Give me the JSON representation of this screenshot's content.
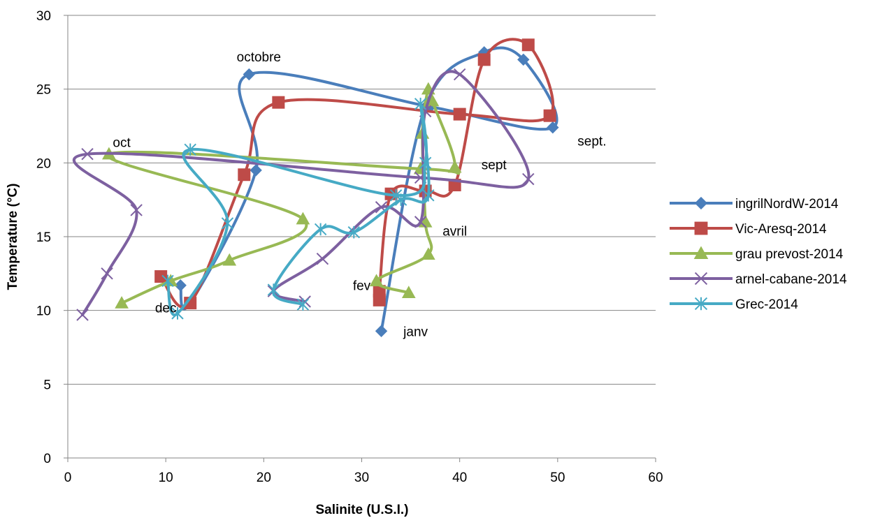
{
  "chart_data": {
    "type": "scatter",
    "title": "",
    "xlabel": "Salinite (U.S.I.)",
    "ylabel": "Temperature (°C)",
    "xlim": [
      0,
      60
    ],
    "ylim": [
      0,
      30
    ],
    "x_ticks": [
      "0",
      "10",
      "20",
      "30",
      "40",
      "50",
      "60"
    ],
    "y_ticks": [
      "0",
      "5",
      "10",
      "15",
      "20",
      "25",
      "30"
    ],
    "grid": "horizontal",
    "legend_position": "right",
    "series": [
      {
        "name": "ingrilNordW-2014",
        "color": "#4a7ebb",
        "marker": "diamond",
        "points": [
          [
            32,
            8.6
          ],
          [
            36.5,
            23.8
          ],
          [
            42.5,
            27.5
          ],
          [
            46.5,
            27
          ],
          [
            49.5,
            22.4
          ],
          [
            37,
            23.8
          ],
          [
            18.5,
            26
          ],
          [
            19.2,
            19.5
          ],
          [
            12.5,
            10.5
          ],
          [
            11.5,
            11.7
          ]
        ]
      },
      {
        "name": "Vic-Aresq-2014",
        "color": "#be4b48",
        "marker": "square",
        "points": [
          [
            31.8,
            10.7
          ],
          [
            31.8,
            11.3
          ],
          [
            33,
            17.9
          ],
          [
            36.5,
            18.1
          ],
          [
            39.5,
            18.5
          ],
          [
            42.5,
            27
          ],
          [
            47,
            28
          ],
          [
            49.2,
            23.2
          ],
          [
            40,
            23.3
          ],
          [
            21.5,
            24.1
          ],
          [
            18,
            19.2
          ],
          [
            12.5,
            10.5
          ],
          [
            9.5,
            12.3
          ]
        ]
      },
      {
        "name": "grau prevost-2014",
        "color": "#98b954",
        "marker": "triangle",
        "points": [
          [
            34.8,
            11.2
          ],
          [
            31.5,
            12
          ],
          [
            36.8,
            13.8
          ],
          [
            36.5,
            16
          ],
          [
            36.2,
            22
          ],
          [
            36.8,
            25
          ],
          [
            37.2,
            24.2
          ],
          [
            39.5,
            19.7
          ],
          [
            36,
            19.6
          ],
          [
            4.2,
            20.6
          ],
          [
            24,
            16.2
          ],
          [
            16.5,
            13.4
          ],
          [
            10.5,
            12
          ],
          [
            5.5,
            10.5
          ]
        ]
      },
      {
        "name": "arnel-cabane-2014",
        "color": "#7d60a0",
        "marker": "x",
        "points": [
          [
            1.5,
            9.7
          ],
          [
            4,
            12.5
          ],
          [
            7,
            16.8
          ],
          [
            2,
            20.6
          ],
          [
            36,
            19
          ],
          [
            47,
            18.9
          ],
          [
            40,
            26
          ],
          [
            36.5,
            23.5
          ],
          [
            36,
            16
          ],
          [
            32,
            17
          ],
          [
            26,
            13.5
          ],
          [
            21,
            11.3
          ],
          [
            24.2,
            10.6
          ]
        ]
      },
      {
        "name": "Grec-2014",
        "color": "#46aac5",
        "marker": "star",
        "points": [
          [
            24,
            10.4
          ],
          [
            21,
            11.4
          ],
          [
            25.8,
            15.5
          ],
          [
            29.2,
            15.3
          ],
          [
            34,
            17.5
          ],
          [
            36.8,
            17.8
          ],
          [
            36,
            24
          ],
          [
            36.5,
            20
          ],
          [
            33.5,
            17.8
          ],
          [
            12.5,
            20.9
          ],
          [
            16.3,
            15.9
          ],
          [
            11.2,
            9.8
          ],
          [
            10.2,
            12
          ]
        ]
      }
    ],
    "annotations": [
      {
        "text": "octobre",
        "x": 19.5,
        "y": 27.2
      },
      {
        "text": "oct",
        "x": 5.5,
        "y": 21.4
      },
      {
        "text": "sept.",
        "x": 53.5,
        "y": 21.5
      },
      {
        "text": "sept",
        "x": 43.5,
        "y": 19.9
      },
      {
        "text": "avril",
        "x": 39.5,
        "y": 15.4
      },
      {
        "text": "fev",
        "x": 30,
        "y": 11.7
      },
      {
        "text": "dec",
        "x": 10,
        "y": 10.2
      },
      {
        "text": "janv",
        "x": 35.5,
        "y": 8.6
      }
    ]
  }
}
